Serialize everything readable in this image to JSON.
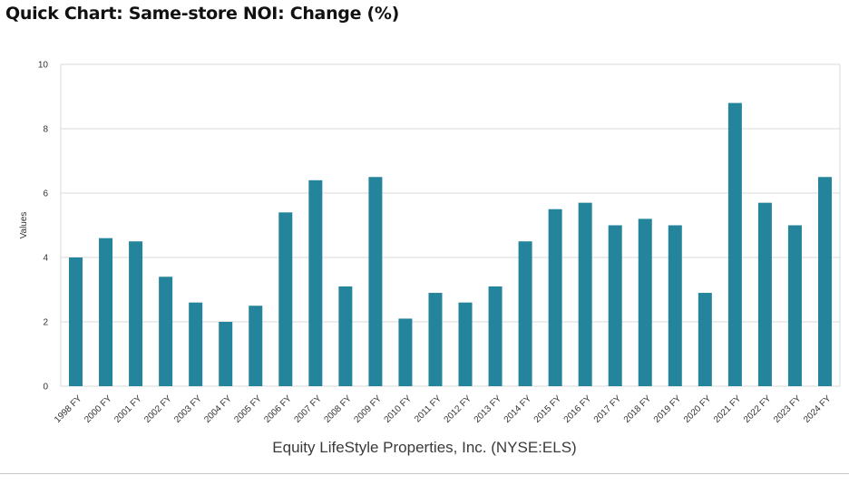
{
  "header": {
    "title": "Quick Chart: Same-store NOI: Change (%)"
  },
  "footer": {
    "company": "Equity LifeStyle Properties, Inc. (NYSE:ELS)"
  },
  "chart_data": {
    "type": "bar",
    "title": "Quick Chart: Same-store NOI: Change (%)",
    "xlabel": "",
    "ylabel": "Values",
    "ylim": [
      0,
      10
    ],
    "yticks": [
      0,
      2,
      4,
      6,
      8,
      10
    ],
    "grid": true,
    "bar_color": "#23849b",
    "categories": [
      "1998 FY",
      "2000 FY",
      "2001 FY",
      "2002 FY",
      "2003 FY",
      "2004 FY",
      "2005 FY",
      "2006 FY",
      "2007 FY",
      "2008 FY",
      "2009 FY",
      "2010 FY",
      "2011 FY",
      "2012 FY",
      "2013 FY",
      "2014 FY",
      "2015 FY",
      "2016 FY",
      "2017 FY",
      "2018 FY",
      "2019 FY",
      "2020 FY",
      "2021 FY",
      "2022 FY",
      "2023 FY",
      "2024 FY"
    ],
    "values": [
      4.0,
      4.6,
      4.5,
      3.4,
      2.6,
      2.0,
      2.5,
      5.4,
      6.4,
      3.1,
      6.5,
      2.1,
      2.9,
      2.6,
      3.1,
      4.5,
      5.5,
      5.7,
      5.0,
      5.2,
      5.0,
      2.9,
      8.8,
      5.7,
      5.0,
      6.5
    ]
  }
}
